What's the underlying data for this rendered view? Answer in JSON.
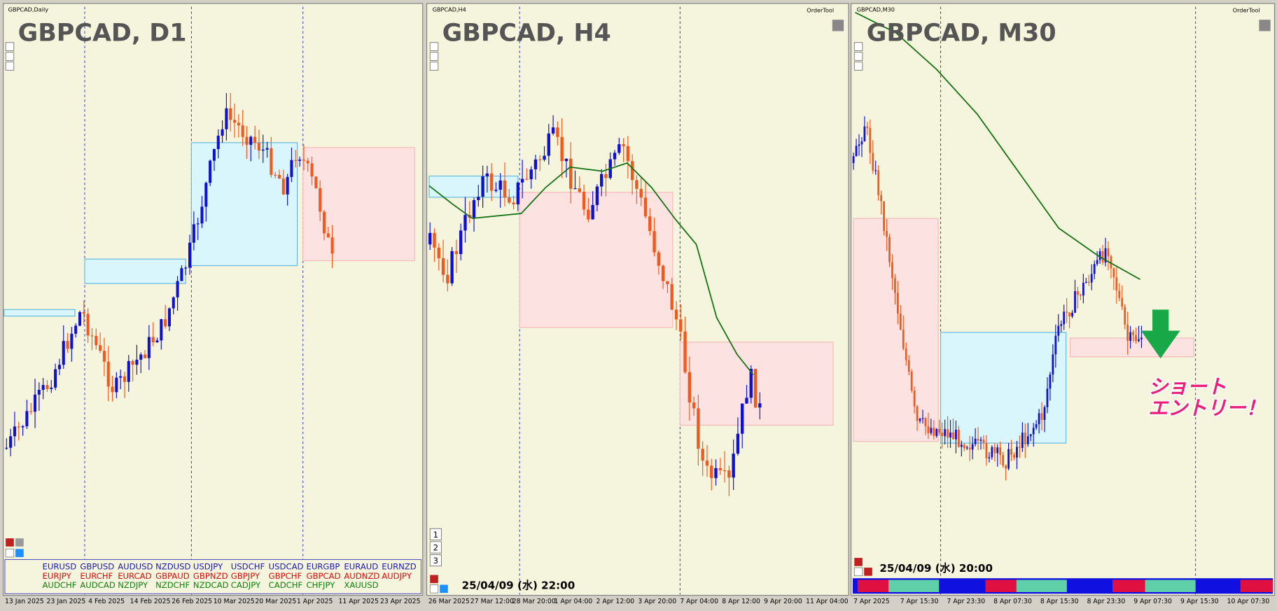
{
  "panels": [
    {
      "header": "GBPCAD,Daily",
      "title": "GBPCAD, D1",
      "x_labels": [
        "13 Jan 2025",
        "23 Jan 2025",
        "4 Feb 2025",
        "14 Feb 2025",
        "26 Feb 2025",
        "10 Mar 2025",
        "20 Mar 2025",
        "1 Apr 2025",
        "11 Apr 2025",
        "23 Apr 2025"
      ]
    },
    {
      "header": "GBPCAD,H4",
      "title": "GBPCAD, H4",
      "order_tool": "OrderTool",
      "timestamp": "25/04/09 (水) 22:00",
      "x_labels": [
        "26 Mar 2025",
        "27 Mar 12:00",
        "28 Mar 20:00",
        "1 Apr 04:00",
        "2 Apr 12:00",
        "3 Apr 20:00",
        "7 Apr 04:00",
        "8 Apr 12:00",
        "9 Apr 20:00",
        "11 Apr 04:00"
      ]
    },
    {
      "header": "GBPCAD,M30",
      "title": "GBPCAD, M30",
      "order_tool": "OrderTool",
      "timestamp": "25/04/09 (水) 20:00",
      "x_labels": [
        "7 Apr 2025",
        "7 Apr 15:30",
        "7 Apr 23:30",
        "8 Apr 07:30",
        "8 Apr 15:30",
        "8 Apr 23:30",
        "9 Apr 07:30",
        "9 Apr 15:30",
        "10 Apr 07:30"
      ]
    }
  ],
  "currency_pairs": [
    [
      "EURUSD",
      "GBPUSD",
      "AUDUSD",
      "NZDUSD",
      "USDJPY",
      "USDCHF",
      "USDCAD",
      "EURGBP",
      "EURAUD",
      "EURNZD"
    ],
    [
      "EURJPY",
      "EURCHF",
      "EURCAD",
      "GBPAUD",
      "GBPNZD",
      "GBPJPY",
      "GBPCHF",
      "GBPCAD",
      "AUDNZD",
      "AUDJPY"
    ],
    [
      "AUDCHF",
      "AUDCAD",
      "NZDJPY",
      "NZDCHF",
      "NZDCAD",
      "CADJPY",
      "CADCHF",
      "CHFJPY",
      "XAUUSD"
    ]
  ],
  "page_buttons": [
    "1",
    "2",
    "3"
  ],
  "annotation": [
    "ショート",
    "エントリー！"
  ]
}
